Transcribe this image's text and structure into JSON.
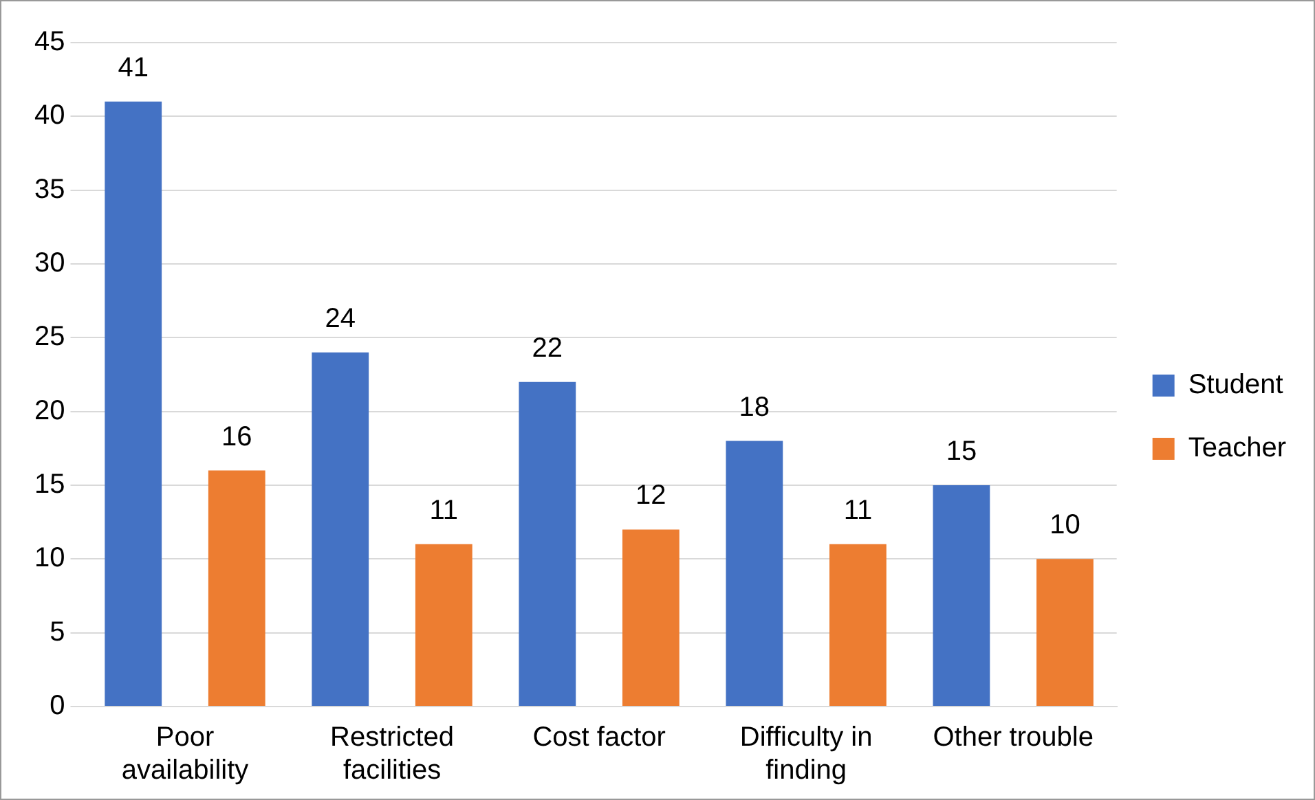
{
  "chart_data": {
    "type": "bar",
    "categories": [
      "Poor availability",
      "Restricted facilities",
      "Cost factor",
      "Difficulty in finding",
      "Other trouble"
    ],
    "series": [
      {
        "name": "Student",
        "color": "#4472c4",
        "values": [
          41,
          24,
          22,
          18,
          15
        ]
      },
      {
        "name": "Teacher",
        "color": "#ed7d31",
        "values": [
          16,
          11,
          12,
          11,
          10
        ]
      }
    ],
    "ylim": [
      0,
      45
    ],
    "yticks": [
      0,
      5,
      10,
      15,
      20,
      25,
      30,
      35,
      40,
      45
    ],
    "grid": "y",
    "legend": "right",
    "data_labels": true
  }
}
